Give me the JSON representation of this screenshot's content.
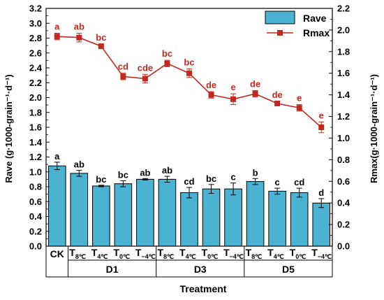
{
  "chart_data": {
    "type": "bar",
    "title": "",
    "xlabel": "Treatment",
    "ylabel": "Rave (g·1000-grain⁻¹·d⁻¹)",
    "y2label": "Rmax(g·1000-grain⁻¹·d⁻¹)",
    "ylim": [
      0.0,
      3.2
    ],
    "y2lim": [
      0.0,
      2.2
    ],
    "yticks": [
      "0.0",
      "0.2",
      "0.4",
      "0.6",
      "0.8",
      "1.0",
      "1.2",
      "1.4",
      "1.6",
      "1.8",
      "2.0",
      "2.2",
      "2.4",
      "2.6",
      "2.8",
      "3.0",
      "3.2"
    ],
    "y2ticks": [
      "0.0",
      "0.2",
      "0.4",
      "0.6",
      "0.8",
      "1.0",
      "1.2",
      "1.4",
      "1.6",
      "1.8",
      "2.0",
      "2.2"
    ],
    "categories": [
      {
        "base": "CK",
        "sub": ""
      },
      {
        "base": "T",
        "sub": "8℃"
      },
      {
        "base": "T",
        "sub": "4℃"
      },
      {
        "base": "T",
        "sub": "0℃"
      },
      {
        "base": "T",
        "sub": "−4℃"
      },
      {
        "base": "T",
        "sub": "8℃"
      },
      {
        "base": "T",
        "sub": "4℃"
      },
      {
        "base": "T",
        "sub": "0℃"
      },
      {
        "base": "T",
        "sub": "−4℃"
      },
      {
        "base": "T",
        "sub": "8℃"
      },
      {
        "base": "T",
        "sub": "4℃"
      },
      {
        "base": "T",
        "sub": "0℃"
      },
      {
        "base": "T",
        "sub": "−4℃"
      }
    ],
    "groups": [
      {
        "label": "D1",
        "start": 1,
        "end": 4
      },
      {
        "label": "D3",
        "start": 5,
        "end": 8
      },
      {
        "label": "D5",
        "start": 9,
        "end": 12
      }
    ],
    "series": [
      {
        "name": "Rave",
        "type": "bar",
        "axis": "left",
        "color": "#4bb3d1",
        "values": [
          1.08,
          0.98,
          0.81,
          0.84,
          0.9,
          0.9,
          0.72,
          0.77,
          0.77,
          0.87,
          0.74,
          0.72,
          0.58
        ],
        "errors": [
          0.05,
          0.04,
          0.01,
          0.04,
          0.01,
          0.04,
          0.07,
          0.06,
          0.08,
          0.04,
          0.04,
          0.06,
          0.06
        ],
        "letters": [
          "a",
          "ab",
          "bc",
          "bc",
          "ab",
          "ab",
          "cd",
          "bc",
          "c",
          "b",
          "c",
          "cd",
          "d"
        ]
      },
      {
        "name": "Rmax",
        "type": "line",
        "axis": "right",
        "color": "#c0291e",
        "values": [
          1.94,
          1.93,
          1.85,
          1.57,
          1.55,
          1.69,
          1.6,
          1.4,
          1.36,
          1.41,
          1.32,
          1.28,
          1.1
        ],
        "errors": [
          0.03,
          0.04,
          0.02,
          0.03,
          0.04,
          0.03,
          0.04,
          0.03,
          0.05,
          0.03,
          0.02,
          0.03,
          0.05
        ],
        "letters": [
          "a",
          "ab",
          "bc",
          "cd",
          "cde",
          "bc",
          "bc",
          "de",
          "e",
          "de",
          "de",
          "e",
          "e"
        ]
      }
    ],
    "legend": [
      {
        "label": "Rave",
        "marker": "bar"
      },
      {
        "label": "Rmax",
        "marker": "line-square"
      }
    ],
    "legend_position": "top-right",
    "grid": false
  }
}
